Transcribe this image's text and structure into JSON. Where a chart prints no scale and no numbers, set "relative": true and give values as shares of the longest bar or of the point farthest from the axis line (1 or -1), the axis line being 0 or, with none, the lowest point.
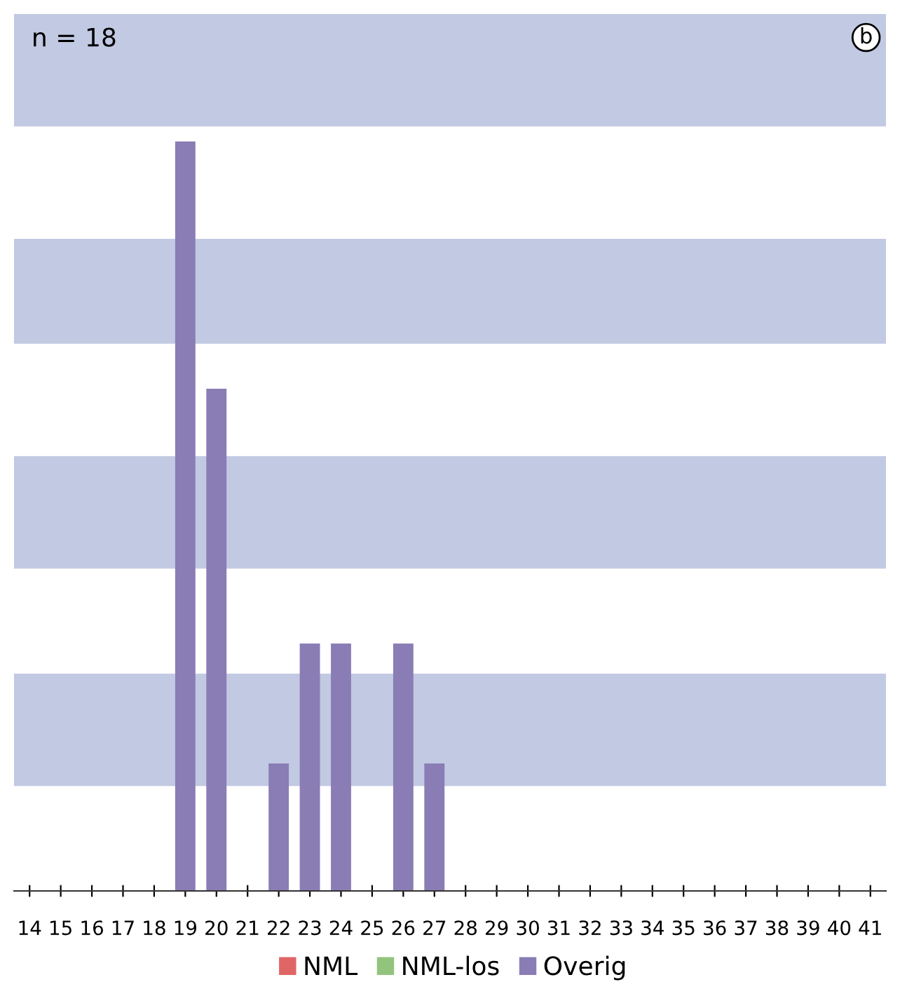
{
  "chart_data": {
    "type": "bar",
    "relative": true,
    "stacked": true,
    "categories": [
      "14",
      "15",
      "16",
      "17",
      "18",
      "19",
      "20",
      "21",
      "22",
      "23",
      "24",
      "25",
      "26",
      "27",
      "28",
      "29",
      "30",
      "31",
      "32",
      "33",
      "34",
      "35",
      "36",
      "37",
      "38",
      "39",
      "40",
      "41"
    ],
    "series": [
      {
        "name": "NML",
        "color": "#e06666",
        "values": [
          0,
          0,
          0,
          0,
          0,
          0,
          0,
          0,
          0,
          0,
          0,
          0,
          0,
          0,
          0,
          0,
          0,
          0,
          0,
          0,
          0,
          0,
          0,
          0,
          0,
          0,
          0,
          0
        ]
      },
      {
        "name": "NML-los",
        "color": "#93c47d",
        "values": [
          0,
          0,
          0,
          0,
          0,
          0,
          0,
          0,
          0,
          0,
          0,
          0,
          0,
          0,
          0,
          0,
          0,
          0,
          0,
          0,
          0,
          0,
          0,
          0,
          0,
          0,
          0,
          0
        ]
      },
      {
        "name": "Overig",
        "color": "#8a7db5",
        "values": [
          0,
          0,
          0,
          0,
          0,
          1,
          0.67,
          0,
          0.17,
          0.33,
          0.33,
          0,
          0.33,
          0.17,
          0,
          0,
          0,
          0,
          0,
          0,
          0,
          0,
          0,
          0,
          0,
          0,
          0,
          0
        ]
      }
    ],
    "bands": [
      {
        "axis": "y",
        "from": 0.14,
        "to": 0.29,
        "color": "#c2c9e2"
      },
      {
        "axis": "y",
        "from": 0.43,
        "to": 0.58,
        "color": "#c2c9e2"
      },
      {
        "axis": "y",
        "from": 0.73,
        "to": 0.87,
        "color": "#c2c9e2"
      },
      {
        "axis": "y",
        "from": 1.02,
        "to": 1.17,
        "color": "#c2c9e2"
      }
    ],
    "annotations": [
      "n = 18",
      "b"
    ],
    "legend": "bottom",
    "grid": false
  }
}
